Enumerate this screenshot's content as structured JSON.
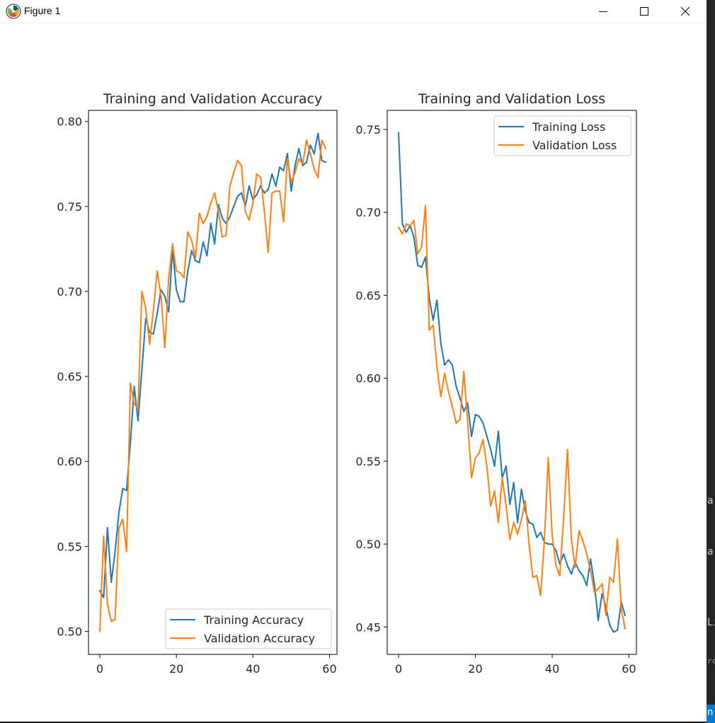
{
  "window": {
    "title": "Figure 1",
    "controls": {
      "minimize_icon": "minimize-icon",
      "maximize_icon": "maximize-icon",
      "close_icon": "close-icon"
    }
  },
  "colors": {
    "training": "#1f77b4",
    "validation": "#ff7f0e",
    "axes": "#000000",
    "text": "#262626"
  },
  "side_strip": {
    "glyphs": [
      "a",
      "a",
      "Li",
      "rc",
      "n"
    ],
    "accent": "#007acc"
  },
  "chart_data": [
    {
      "type": "line",
      "title": "Training and Validation Accuracy",
      "xlabel": "",
      "ylabel": "",
      "xlim": [
        -2.95,
        61.95
      ],
      "ylim": [
        0.4865,
        0.8065
      ],
      "xticks": [
        0,
        20,
        40,
        60
      ],
      "yticks": [
        0.5,
        0.55,
        0.6,
        0.65,
        0.7,
        0.75,
        0.8
      ],
      "ytick_labels": [
        "0.50",
        "0.55",
        "0.60",
        "0.65",
        "0.70",
        "0.75",
        "0.80"
      ],
      "legend": {
        "placement": "lower-right",
        "entries": [
          "Training Accuracy",
          "Validation Accuracy"
        ]
      },
      "grid": false,
      "series": [
        {
          "name": "Training Accuracy",
          "values": [
            0.524,
            0.52,
            0.561,
            0.529,
            0.547,
            0.57,
            0.584,
            0.583,
            0.611,
            0.644,
            0.624,
            0.654,
            0.684,
            0.676,
            0.675,
            0.687,
            0.701,
            0.697,
            0.688,
            0.725,
            0.701,
            0.694,
            0.694,
            0.712,
            0.724,
            0.718,
            0.717,
            0.729,
            0.721,
            0.74,
            0.728,
            0.751,
            0.743,
            0.74,
            0.744,
            0.75,
            0.756,
            0.758,
            0.75,
            0.762,
            0.754,
            0.757,
            0.762,
            0.758,
            0.76,
            0.769,
            0.762,
            0.773,
            0.771,
            0.781,
            0.759,
            0.774,
            0.784,
            0.774,
            0.776,
            0.786,
            0.781,
            0.793,
            0.777,
            0.776
          ]
        },
        {
          "name": "Validation Accuracy",
          "values": [
            0.5,
            0.556,
            0.516,
            0.506,
            0.507,
            0.561,
            0.566,
            0.547,
            0.646,
            0.634,
            0.631,
            0.7,
            0.69,
            0.669,
            0.689,
            0.712,
            0.697,
            0.667,
            0.708,
            0.728,
            0.712,
            0.711,
            0.708,
            0.735,
            0.73,
            0.72,
            0.746,
            0.74,
            0.744,
            0.752,
            0.758,
            0.747,
            0.732,
            0.733,
            0.762,
            0.77,
            0.777,
            0.774,
            0.747,
            0.742,
            0.752,
            0.769,
            0.767,
            0.747,
            0.723,
            0.758,
            0.759,
            0.759,
            0.741,
            0.778,
            0.764,
            0.77,
            0.778,
            0.775,
            0.789,
            0.781,
            0.772,
            0.767,
            0.789,
            0.784
          ]
        }
      ]
    },
    {
      "type": "line",
      "title": "Training and Validation Loss",
      "xlabel": "",
      "ylabel": "",
      "xlim": [
        -2.95,
        61.95
      ],
      "ylim": [
        0.4335,
        0.7615
      ],
      "xticks": [
        0,
        20,
        40,
        60
      ],
      "yticks": [
        0.45,
        0.5,
        0.55,
        0.6,
        0.65,
        0.7,
        0.75
      ],
      "ytick_labels": [
        "0.45",
        "0.50",
        "0.55",
        "0.60",
        "0.65",
        "0.70",
        "0.75"
      ],
      "legend": {
        "placement": "top-right",
        "entries": [
          "Training Loss",
          "Validation Loss"
        ]
      },
      "grid": false,
      "series": [
        {
          "name": "Training Loss",
          "values": [
            0.748,
            0.693,
            0.688,
            0.692,
            0.685,
            0.668,
            0.667,
            0.673,
            0.648,
            0.635,
            0.647,
            0.621,
            0.608,
            0.611,
            0.608,
            0.595,
            0.588,
            0.58,
            0.585,
            0.565,
            0.578,
            0.577,
            0.573,
            0.565,
            0.557,
            0.547,
            0.568,
            0.54,
            0.547,
            0.524,
            0.537,
            0.513,
            0.533,
            0.52,
            0.513,
            0.512,
            0.504,
            0.507,
            0.501,
            0.5,
            0.5,
            0.496,
            0.488,
            0.494,
            0.487,
            0.482,
            0.489,
            0.484,
            0.481,
            0.475,
            0.491,
            0.476,
            0.454,
            0.47,
            0.462,
            0.451,
            0.447,
            0.448,
            0.465,
            0.457
          ]
        },
        {
          "name": "Validation Loss",
          "values": [
            0.691,
            0.687,
            0.693,
            0.692,
            0.695,
            0.675,
            0.679,
            0.704,
            0.629,
            0.632,
            0.607,
            0.589,
            0.603,
            0.592,
            0.583,
            0.573,
            0.575,
            0.604,
            0.574,
            0.54,
            0.552,
            0.555,
            0.563,
            0.547,
            0.523,
            0.532,
            0.513,
            0.54,
            0.523,
            0.503,
            0.513,
            0.506,
            0.515,
            0.526,
            0.5,
            0.48,
            0.481,
            0.469,
            0.503,
            0.552,
            0.506,
            0.487,
            0.481,
            0.516,
            0.557,
            0.503,
            0.486,
            0.508,
            0.502,
            0.494,
            0.484,
            0.471,
            0.473,
            0.476,
            0.457,
            0.48,
            0.477,
            0.503,
            0.461,
            0.449
          ]
        }
      ]
    }
  ]
}
